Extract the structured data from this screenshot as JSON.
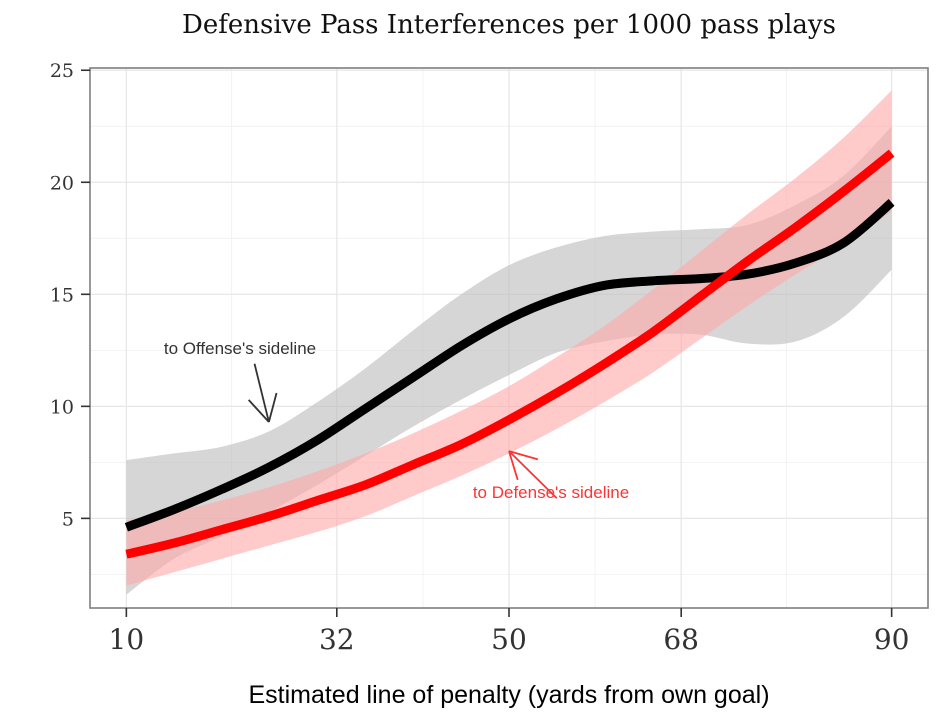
{
  "chart_data": {
    "type": "line",
    "title": "Defensive Pass Interferences per 1000 pass plays",
    "xlabel": "Estimated line of penalty (yards from own goal)",
    "ylabel": "",
    "x_ticks": [
      10,
      32,
      50,
      68,
      90
    ],
    "x_tick_labels": [
      "10",
      "32",
      "50",
      "68",
      "90"
    ],
    "y_ticks": [
      5,
      10,
      15,
      20,
      25
    ],
    "y_tick_labels": [
      "5",
      "10",
      "15",
      "20",
      "25"
    ],
    "xlim": [
      6.2,
      93.8
    ],
    "ylim": [
      1,
      25.1
    ],
    "grid": true,
    "x": [
      10,
      15,
      20,
      25,
      30,
      35,
      40,
      45,
      50,
      55,
      60,
      65,
      70,
      75,
      80,
      85,
      90
    ],
    "series": [
      {
        "name": "to Offense's sideline",
        "color": "#000000",
        "band_color": "#bdbdbd",
        "values": [
          4.6,
          5.4,
          6.3,
          7.3,
          8.5,
          9.9,
          11.3,
          12.7,
          13.9,
          14.8,
          15.4,
          15.6,
          15.7,
          15.9,
          16.4,
          17.3,
          19.1
        ],
        "lower": [
          1.6,
          3.2,
          4.2,
          5.3,
          6.5,
          7.8,
          9.1,
          10.3,
          11.4,
          12.4,
          12.9,
          13.2,
          13.2,
          12.8,
          12.9,
          14.0,
          16.1
        ],
        "upper": [
          7.6,
          7.9,
          8.2,
          8.9,
          10.2,
          11.7,
          13.4,
          15.0,
          16.3,
          17.1,
          17.6,
          17.8,
          17.9,
          18.1,
          19.0,
          20.3,
          22.5
        ]
      },
      {
        "name": "to Defense's sideline",
        "color": "#ff0000",
        "band_color": "#ffaaaa",
        "values": [
          3.4,
          3.9,
          4.5,
          5.1,
          5.8,
          6.5,
          7.4,
          8.3,
          9.4,
          10.6,
          11.9,
          13.3,
          14.9,
          16.5,
          18.0,
          19.6,
          21.3
        ],
        "lower": [
          2.0,
          2.6,
          3.2,
          3.8,
          4.4,
          5.1,
          6.0,
          6.9,
          7.9,
          9.0,
          10.2,
          11.5,
          13.0,
          14.5,
          15.9,
          17.2,
          18.7
        ],
        "upper": [
          4.9,
          5.3,
          5.8,
          6.4,
          7.1,
          7.9,
          8.8,
          9.8,
          10.9,
          12.2,
          13.6,
          15.2,
          16.9,
          18.6,
          20.2,
          22.0,
          24.1
        ]
      }
    ],
    "annotations": [
      {
        "text": "to Offense's sideline",
        "color": "#333333",
        "arrow_from": [
          23.4,
          11.9
        ],
        "arrow_to": [
          24.9,
          9.3
        ]
      },
      {
        "text": "to Defense's sideline",
        "color": "#ff3333",
        "arrow_from": [
          55.0,
          5.9
        ],
        "arrow_to": [
          50.0,
          8.0
        ]
      }
    ]
  }
}
